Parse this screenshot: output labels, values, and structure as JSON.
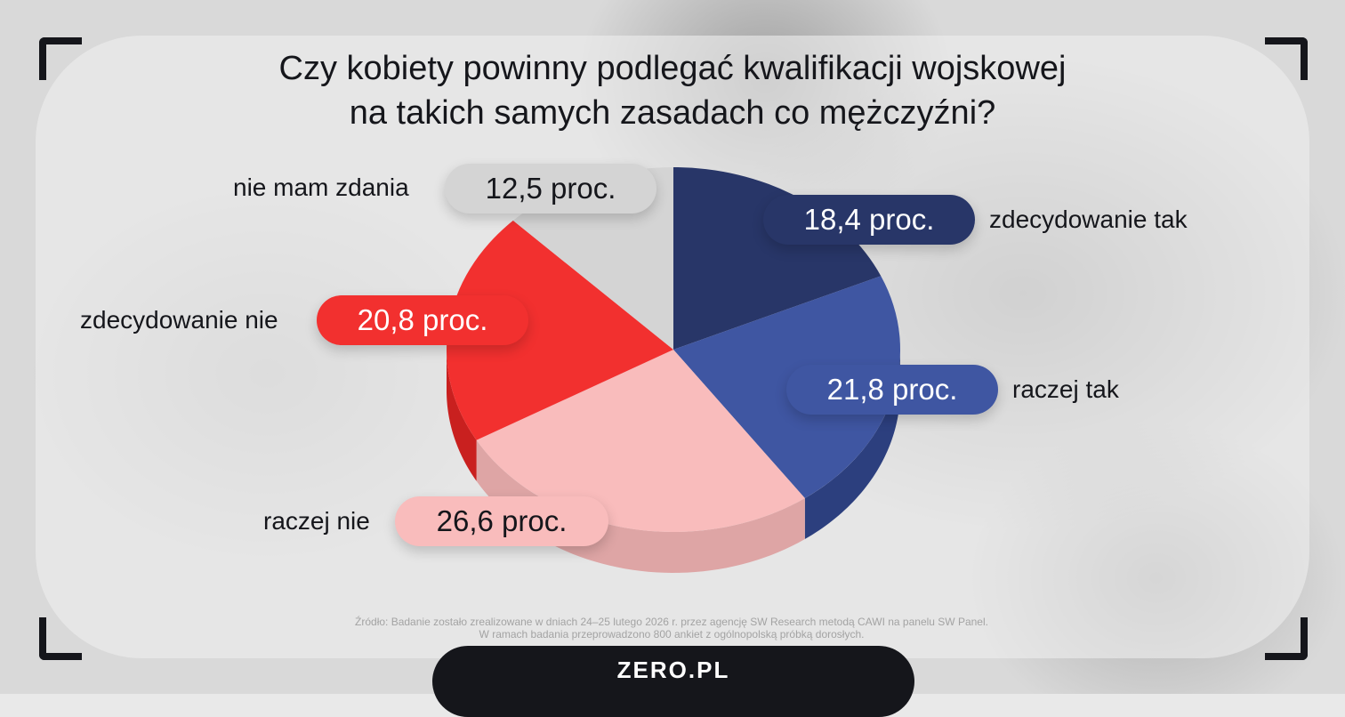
{
  "title_line1": "Czy kobiety powinny podlegać kwalifikacji wojskowej",
  "title_line2": "na takich samych zasadach co mężczyźni?",
  "source_line1": "Źródło: Badanie zostało zrealizowane w dniach 24–25 lutego 2026 r. przez agencję SW Research metodą CAWI na panelu SW Panel.",
  "source_line2": "W ramach badania przeprowadzono 800 ankiet z ogólnopolską próbką dorosłych.",
  "brand": "ZERO.PL",
  "chart_data": {
    "type": "pie",
    "unit": "proc.",
    "slices": [
      {
        "label": "zdecydowanie tak",
        "value": 18.4,
        "value_label": "18,4 proc.",
        "color": "#283668",
        "side_color": "#1d284f",
        "label_color": "#ffffff"
      },
      {
        "label": "raczej tak",
        "value": 21.8,
        "value_label": "21,8 proc.",
        "color": "#3f56a2",
        "side_color": "#2c3f7e",
        "label_color": "#ffffff"
      },
      {
        "label": "raczej nie",
        "value": 26.6,
        "value_label": "26,6 proc.",
        "color": "#f9bcbc",
        "side_color": "#dea5a5",
        "label_color": "#15161b"
      },
      {
        "label": "zdecydowanie nie",
        "value": 20.8,
        "value_label": "20,8 proc.",
        "color": "#f2302f",
        "side_color": "#c9201f",
        "label_color": "#ffffff"
      },
      {
        "label": "nie mam zdania",
        "value": 12.5,
        "value_label": "12,5 proc.",
        "color": "#d4d4d4",
        "side_color": "#bdbdbd",
        "label_color": "#15161b"
      }
    ]
  }
}
